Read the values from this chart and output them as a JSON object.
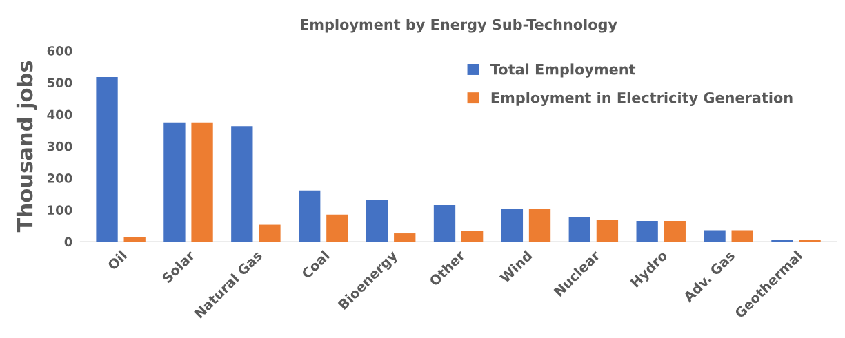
{
  "chart_data": {
    "type": "bar",
    "title": "Employment by Energy Sub-Technology",
    "ylabel": "Thousand jobs",
    "categories": [
      "Oil",
      "Solar",
      "Natural Gas",
      "Coal",
      "Bioenergy",
      "Other",
      "Wind",
      "Nuclear",
      "Hydro",
      "Adv. Gas",
      "Geothermal"
    ],
    "series": [
      {
        "name": "Total Employment",
        "color": "#4472c4",
        "values": [
          517,
          375,
          363,
          161,
          130,
          115,
          104,
          78,
          65,
          36,
          5
        ]
      },
      {
        "name": "Employment in Electricity Generation",
        "color": "#ed7d31",
        "values": [
          13,
          375,
          53,
          85,
          26,
          33,
          104,
          69,
          65,
          36,
          5
        ]
      }
    ],
    "ylim": [
      0,
      600
    ],
    "yticks": [
      0,
      100,
      200,
      300,
      400,
      500,
      600
    ],
    "grid": false,
    "legend": "top right"
  }
}
